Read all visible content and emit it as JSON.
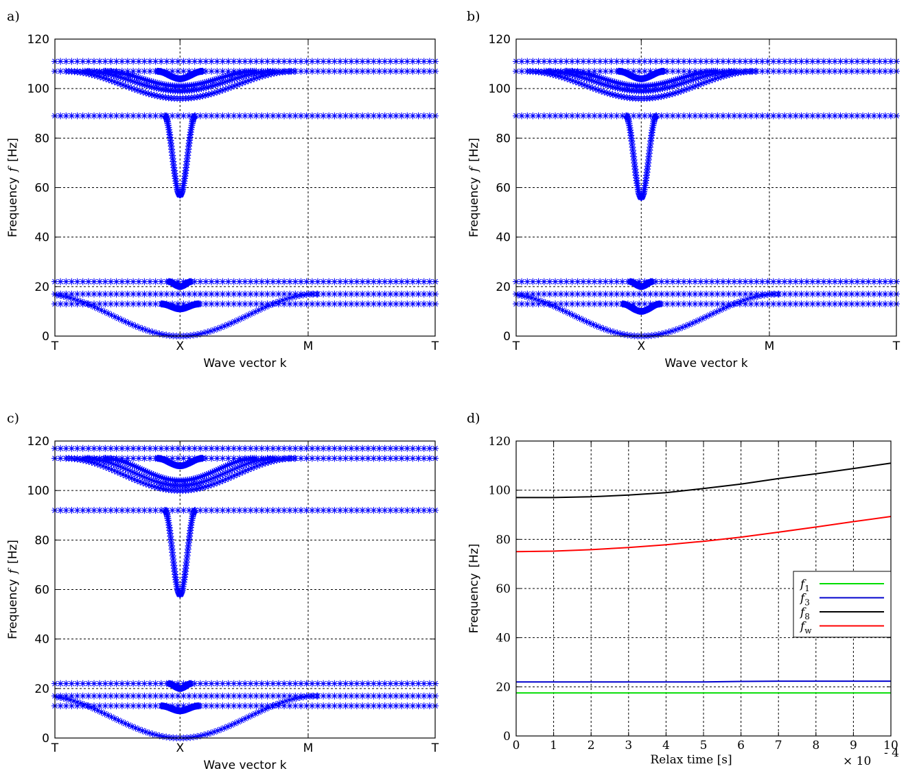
{
  "chart_data": [
    {
      "type": "scatter",
      "panel_label": "a)",
      "xlabel": "Wave vector k",
      "ylabel": "Frequency",
      "ylabel_symbol": "f",
      "ylabel_unit": "[Hz]",
      "ylim": [
        0,
        120
      ],
      "yticks": [
        0,
        20,
        40,
        60,
        80,
        100,
        120
      ],
      "xtick_labels": [
        "T",
        "X",
        "M",
        "T"
      ],
      "grid": true,
      "marker": "*",
      "color": "#0000ff",
      "flat_bands": [
        13,
        17,
        22,
        89,
        107,
        111
      ],
      "dip_bands": [
        {
          "base": 107,
          "min": 104,
          "width": 0.06
        },
        {
          "base": 107,
          "min": 96,
          "width": 0.3
        },
        {
          "base": 107,
          "min": 99,
          "width": 0.25
        },
        {
          "base": 107,
          "min": 101,
          "width": 0.2
        },
        {
          "base": 89,
          "min": 57,
          "width": 0.04
        },
        {
          "base": 22,
          "min": 20,
          "width": 0.03
        },
        {
          "base": 17,
          "min": 0,
          "width": 0.36
        },
        {
          "base": 13,
          "min": 11,
          "width": 0.05
        }
      ]
    },
    {
      "type": "scatter",
      "panel_label": "b)",
      "xlabel": "Wave vector k",
      "ylabel": "Frequency",
      "ylabel_symbol": "f",
      "ylabel_unit": "[Hz]",
      "ylim": [
        0,
        120
      ],
      "yticks": [
        0,
        20,
        40,
        60,
        80,
        100,
        120
      ],
      "xtick_labels": [
        "T",
        "X",
        "M",
        "T"
      ],
      "grid": true,
      "marker": "*",
      "color": "#0000ff",
      "flat_bands": [
        13,
        17,
        22,
        89,
        107,
        111
      ],
      "dip_bands": [
        {
          "base": 107,
          "min": 104,
          "width": 0.06
        },
        {
          "base": 107,
          "min": 96,
          "width": 0.3
        },
        {
          "base": 107,
          "min": 99,
          "width": 0.25
        },
        {
          "base": 107,
          "min": 101,
          "width": 0.2
        },
        {
          "base": 89,
          "min": 56,
          "width": 0.04
        },
        {
          "base": 22,
          "min": 20,
          "width": 0.03
        },
        {
          "base": 17,
          "min": 0,
          "width": 0.36
        },
        {
          "base": 13,
          "min": 10,
          "width": 0.05
        }
      ]
    },
    {
      "type": "scatter",
      "panel_label": "c)",
      "xlabel": "Wave vector k",
      "ylabel": "Frequency",
      "ylabel_symbol": "f",
      "ylabel_unit": "[Hz]",
      "ylim": [
        0,
        120
      ],
      "yticks": [
        0,
        20,
        40,
        60,
        80,
        100,
        120
      ],
      "xtick_labels": [
        "T",
        "X",
        "M",
        "T"
      ],
      "grid": true,
      "marker": "*",
      "color": "#0000ff",
      "flat_bands": [
        13,
        17,
        22,
        92,
        113,
        117
      ],
      "dip_bands": [
        {
          "base": 113,
          "min": 110,
          "width": 0.06
        },
        {
          "base": 113,
          "min": 100,
          "width": 0.3
        },
        {
          "base": 113,
          "min": 102,
          "width": 0.25
        },
        {
          "base": 113,
          "min": 104,
          "width": 0.2
        },
        {
          "base": 92,
          "min": 58,
          "width": 0.04
        },
        {
          "base": 22,
          "min": 20,
          "width": 0.03
        },
        {
          "base": 17,
          "min": 0,
          "width": 0.36
        },
        {
          "base": 13,
          "min": 11,
          "width": 0.05
        }
      ]
    },
    {
      "type": "line",
      "panel_label": "d)",
      "xlabel": "Relax time [s]",
      "ylabel": "Frequency",
      "ylabel_unit": "[Hz]",
      "xlim": [
        0,
        10
      ],
      "ylim": [
        0,
        120
      ],
      "xticks": [
        0,
        1,
        2,
        3,
        4,
        5,
        6,
        7,
        8,
        9,
        10
      ],
      "yticks": [
        0,
        20,
        40,
        60,
        80,
        100,
        120
      ],
      "x_multiplier_base": "× 10",
      "x_multiplier_exp": "- 4",
      "grid": true,
      "legend_placement": "center-right",
      "x": [
        0,
        1,
        2,
        3,
        4,
        5,
        6,
        7,
        8,
        9,
        10
      ],
      "series": [
        {
          "name": "f",
          "sub": "1",
          "color": "#00dd00",
          "values": [
            17.5,
            17.5,
            17.5,
            17.5,
            17.5,
            17.5,
            17.5,
            17.5,
            17.5,
            17.5,
            17.5
          ]
        },
        {
          "name": "f",
          "sub": "3",
          "color": "#0000cc",
          "values": [
            22,
            22,
            22,
            22,
            22,
            22,
            22.2,
            22.3,
            22.3,
            22.3,
            22.3
          ]
        },
        {
          "name": "f",
          "sub": "8",
          "color": "#000000",
          "values": [
            97,
            97,
            97.3,
            98,
            99,
            100.7,
            102.5,
            104.7,
            106.7,
            108.8,
            111
          ]
        },
        {
          "name": "f",
          "sub": "w",
          "color": "#ff0000",
          "values": [
            75,
            75.2,
            75.8,
            76.7,
            77.8,
            79.2,
            80.9,
            82.9,
            85,
            87.2,
            89.3
          ]
        }
      ]
    }
  ]
}
